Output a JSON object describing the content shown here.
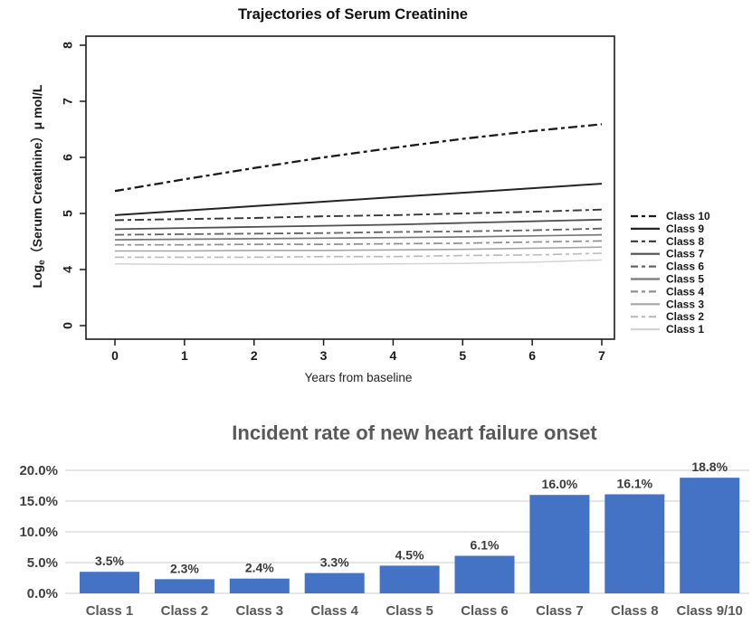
{
  "chart_data": [
    {
      "type": "line",
      "title": "Trajectories of Serum Creatinine",
      "xlabel": "Years from baseline",
      "ylabel": "Log_e（Serum Creatinine）μ mol/L",
      "ylabel_prefix": "Log",
      "ylabel_sub": "e",
      "ylabel_rest": "（Serum Creatinine）μ mol/L",
      "x": [
        0,
        1,
        2,
        3,
        4,
        5,
        6,
        7
      ],
      "x_tick_labels": [
        "0",
        "1",
        "2",
        "3",
        "4",
        "5",
        "6",
        "7"
      ],
      "y_tick_labels": [
        "8",
        "7",
        "6",
        "5",
        "4",
        "0"
      ],
      "y_tick_values": [
        8,
        7,
        6,
        5,
        4,
        0
      ],
      "y_axis_break_between": [
        4,
        0
      ],
      "legend_position": "right",
      "grid": false,
      "axis_color": "#1a1a1a",
      "series": [
        {
          "name": "Class 10",
          "dash": true,
          "color": "#1a1a1a",
          "width": 2.3,
          "values": [
            5.4,
            5.61,
            5.81,
            6.0,
            6.17,
            6.33,
            6.47,
            6.59
          ]
        },
        {
          "name": "Class 9",
          "dash": false,
          "color": "#242424",
          "width": 2.0,
          "values": [
            4.97,
            5.05,
            5.13,
            5.21,
            5.29,
            5.37,
            5.45,
            5.53
          ]
        },
        {
          "name": "Class 8",
          "dash": true,
          "color": "#383838",
          "width": 1.9,
          "values": [
            4.88,
            4.9,
            4.92,
            4.95,
            4.97,
            5.0,
            5.03,
            5.07
          ]
        },
        {
          "name": "Class 7",
          "dash": false,
          "color": "#4f4f4f",
          "width": 1.8,
          "values": [
            4.72,
            4.74,
            4.76,
            4.78,
            4.8,
            4.83,
            4.86,
            4.89
          ]
        },
        {
          "name": "Class 6",
          "dash": true,
          "color": "#636363",
          "width": 1.8,
          "values": [
            4.62,
            4.63,
            4.64,
            4.65,
            4.67,
            4.68,
            4.7,
            4.73
          ]
        },
        {
          "name": "Class 5",
          "dash": false,
          "color": "#787878",
          "width": 1.7,
          "values": [
            4.53,
            4.54,
            4.55,
            4.56,
            4.57,
            4.58,
            4.6,
            4.62
          ]
        },
        {
          "name": "Class 4",
          "dash": true,
          "color": "#8f8f8f",
          "width": 1.7,
          "values": [
            4.44,
            4.44,
            4.45,
            4.45,
            4.46,
            4.47,
            4.49,
            4.51
          ]
        },
        {
          "name": "Class 3",
          "dash": false,
          "color": "#a6a6a6",
          "width": 1.6,
          "values": [
            4.33,
            4.33,
            4.34,
            4.34,
            4.35,
            4.36,
            4.38,
            4.4
          ]
        },
        {
          "name": "Class 2",
          "dash": true,
          "color": "#b9b9b9",
          "width": 1.6,
          "values": [
            4.22,
            4.22,
            4.22,
            4.23,
            4.23,
            4.25,
            4.26,
            4.29
          ]
        },
        {
          "name": "Class 1",
          "dash": false,
          "color": "#d4d4d4",
          "width": 1.5,
          "values": [
            4.1,
            4.09,
            4.09,
            4.09,
            4.1,
            4.11,
            4.13,
            4.17
          ]
        }
      ]
    },
    {
      "type": "bar",
      "title": "Incident rate of new heart failure onset",
      "categories": [
        "Class 1",
        "Class 2",
        "Class 3",
        "Class 4",
        "Class 5",
        "Class 6",
        "Class 7",
        "Class 8",
        "Class 9/10"
      ],
      "values": [
        3.5,
        2.3,
        2.4,
        3.3,
        4.5,
        6.1,
        16.0,
        16.1,
        18.8
      ],
      "value_labels": [
        "3.5%",
        "2.3%",
        "2.4%",
        "3.3%",
        "4.5%",
        "6.1%",
        "16.0%",
        "16.1%",
        "18.8%"
      ],
      "y_ticks": [
        {
          "value": 0,
          "label": "0.0%"
        },
        {
          "value": 5,
          "label": "5.0%"
        },
        {
          "value": 10,
          "label": "10.0%"
        },
        {
          "value": 15,
          "label": "15.0%"
        },
        {
          "value": 20,
          "label": "20.0%"
        }
      ],
      "ylim": [
        0,
        20
      ],
      "grid": true,
      "bar_color": "#4472c4",
      "grid_color": "#d6d6d6",
      "title_color": "#595959",
      "tick_label_color": "#404040",
      "category_label_color": "#595959",
      "value_label_color": "#3a3a3a"
    }
  ]
}
